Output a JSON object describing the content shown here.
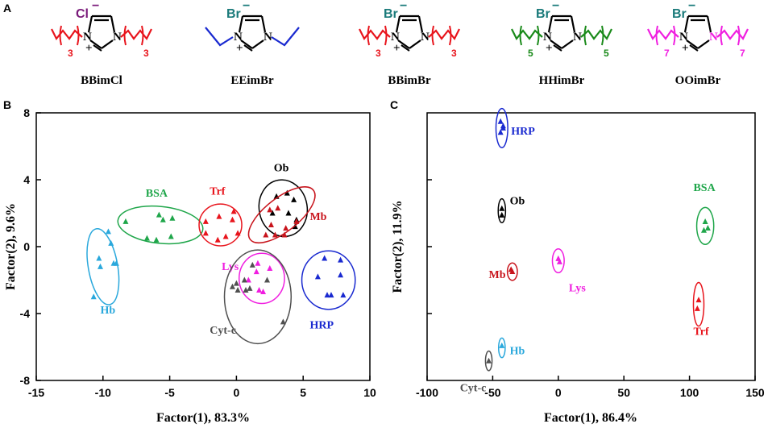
{
  "panel_labels": {
    "a": "A",
    "b": "B",
    "c": "C"
  },
  "molecules": [
    {
      "name": "BBimCl",
      "anion": "Cl",
      "charge": "−",
      "plus": "+",
      "atom_n": "N",
      "n": "3",
      "anion_color": "#7a1a7a",
      "chain_color": "#e8141c",
      "ring_n_color": "#000000"
    },
    {
      "name": "EEimBr",
      "anion": "Br",
      "charge": "−",
      "plus": "+",
      "atom_n": "N",
      "n": "",
      "anion_color": "#1a7a7a",
      "chain_color": "#1a2ad0",
      "ring_n_color": "#000000"
    },
    {
      "name": "BBimBr",
      "anion": "Br",
      "charge": "−",
      "plus": "+",
      "atom_n": "N",
      "n": "3",
      "anion_color": "#1a7a7a",
      "chain_color": "#e8141c",
      "ring_n_color": "#000000"
    },
    {
      "name": "HHimBr",
      "anion": "Br",
      "charge": "−",
      "plus": "+",
      "atom_n": "N",
      "n": "5",
      "anion_color": "#1a7a7a",
      "chain_color": "#1a8a1a",
      "ring_n_color": "#000000"
    },
    {
      "name": "OOimBr",
      "anion": "Br",
      "charge": "−",
      "plus": "+",
      "atom_n": "N",
      "n": "7",
      "anion_color": "#1a7a7a",
      "chain_color": "#f01ee0",
      "ring_n_color": "#f01ee0"
    }
  ],
  "chart_data": [
    {
      "type": "scatter",
      "panel": "B",
      "xlabel": "Factor(1), 83.3%",
      "ylabel": "Factor(2), 9.6%",
      "xlim": [
        -15,
        10
      ],
      "ylim": [
        -8,
        8
      ],
      "xticks": [
        -15,
        -10,
        -5,
        0,
        5,
        10
      ],
      "yticks": [
        -8,
        -4,
        0,
        4,
        8
      ],
      "xtick_labels": [
        "-15",
        "-10",
        "-5",
        "0",
        "5",
        "10"
      ],
      "ytick_labels": [
        "-8",
        "-4",
        "0",
        "4",
        "8"
      ],
      "marker": "triangle",
      "groups": [
        {
          "name": "Hb",
          "color": "#2aa8dc",
          "ellipse": {
            "cx": -10.0,
            "cy": -1.2,
            "rx": 1.1,
            "ry": 2.3,
            "angle": 10
          },
          "label_at": [
            -10.2,
            -4.0
          ],
          "points": [
            [
              -9.6,
              0.9
            ],
            [
              -9.4,
              0.2
            ],
            [
              -10.3,
              -0.7
            ],
            [
              -9.2,
              -1.0
            ],
            [
              -9.0,
              -1.0
            ],
            [
              -10.2,
              -1.2
            ],
            [
              -10.7,
              -3.0
            ]
          ]
        },
        {
          "name": "BSA",
          "color": "#1fa64a",
          "ellipse": {
            "cx": -5.7,
            "cy": 1.3,
            "rx": 3.2,
            "ry": 1.1,
            "angle": -6
          },
          "label_at": [
            -6.8,
            3.0
          ],
          "points": [
            [
              -5.8,
              1.9
            ],
            [
              -5.5,
              1.6
            ],
            [
              -4.8,
              1.7
            ],
            [
              -8.3,
              1.5
            ],
            [
              -4.9,
              0.6
            ],
            [
              -6.0,
              0.4
            ],
            [
              -6.7,
              0.5
            ]
          ]
        },
        {
          "name": "Trf",
          "color": "#e8141c",
          "ellipse": {
            "cx": -1.2,
            "cy": 1.3,
            "rx": 1.6,
            "ry": 1.25,
            "angle": 0
          },
          "label_at": [
            -2.0,
            3.1
          ],
          "points": [
            [
              -0.2,
              2.1
            ],
            [
              -1.3,
              1.8
            ],
            [
              -0.3,
              1.6
            ],
            [
              -2.3,
              1.5
            ],
            [
              -2.3,
              0.8
            ],
            [
              0.1,
              0.8
            ],
            [
              -0.8,
              0.6
            ],
            [
              -1.4,
              0.4
            ]
          ]
        },
        {
          "name": "Ob",
          "color": "#000000",
          "ellipse": {
            "cx": 3.5,
            "cy": 2.3,
            "rx": 1.8,
            "ry": 1.7,
            "angle": 10
          },
          "label_at": [
            2.8,
            4.5
          ],
          "points": [
            [
              3.8,
              3.2
            ],
            [
              3.0,
              3.0
            ],
            [
              4.3,
              2.8
            ],
            [
              2.7,
              2.0
            ],
            [
              3.9,
              2.0
            ],
            [
              4.5,
              1.6
            ],
            [
              4.4,
              1.2
            ]
          ]
        },
        {
          "name": "Mb",
          "color": "#c8141c",
          "ellipse": {
            "cx": 3.4,
            "cy": 1.9,
            "rx": 3.0,
            "ry": 1.0,
            "angle": 38
          },
          "label_at": [
            5.5,
            1.6
          ],
          "points": [
            [
              2.5,
              2.2
            ],
            [
              3.1,
              2.3
            ],
            [
              2.6,
              1.3
            ],
            [
              3.7,
              1.1
            ],
            [
              2.2,
              0.7
            ],
            [
              3.6,
              0.7
            ],
            [
              2.9,
              0.7
            ],
            [
              4.5,
              1.5
            ]
          ]
        },
        {
          "name": "Lys",
          "color": "#f01ee0",
          "ellipse": {
            "cx": 1.9,
            "cy": -1.9,
            "rx": 1.7,
            "ry": 1.5,
            "angle": 0
          },
          "label_at": [
            -1.1,
            -1.4
          ],
          "points": [
            [
              1.5,
              -1.5
            ],
            [
              2.5,
              -1.3
            ],
            [
              0.9,
              -2.0
            ],
            [
              1.7,
              -2.6
            ],
            [
              2.0,
              -2.7
            ],
            [
              1.6,
              -1.0
            ]
          ]
        },
        {
          "name": "Cyt-c",
          "color": "#505050",
          "ellipse": {
            "cx": 1.6,
            "cy": -3.0,
            "rx": 2.5,
            "ry": 2.8,
            "angle": 0
          },
          "label_at": [
            -2.0,
            -5.2
          ],
          "points": [
            [
              1.2,
              -1.1
            ],
            [
              0.6,
              -2.0
            ],
            [
              2.3,
              -2.0
            ],
            [
              -0.3,
              -2.4
            ],
            [
              0.1,
              -2.6
            ],
            [
              0.7,
              -2.6
            ],
            [
              1.0,
              -2.5
            ],
            [
              0.0,
              -2.2
            ],
            [
              3.5,
              -4.5
            ]
          ]
        },
        {
          "name": "HRP",
          "color": "#1a2ad0",
          "ellipse": {
            "cx": 6.9,
            "cy": -2.0,
            "rx": 2.0,
            "ry": 1.75,
            "angle": 0
          },
          "label_at": [
            5.5,
            -4.9
          ],
          "points": [
            [
              6.6,
              -0.7
            ],
            [
              7.8,
              -0.8
            ],
            [
              7.8,
              -1.7
            ],
            [
              6.1,
              -1.8
            ],
            [
              8.0,
              -2.9
            ],
            [
              6.8,
              -2.9
            ],
            [
              7.1,
              -2.9
            ]
          ]
        }
      ]
    },
    {
      "type": "scatter",
      "panel": "C",
      "xlabel": "Factor(1), 86.4%",
      "ylabel": "Factor(2), 11.9%",
      "xlim": [
        -100,
        150
      ],
      "ylim": [
        -5.5,
        6.8
      ],
      "xticks": [
        -100,
        -50,
        0,
        50,
        100,
        150
      ],
      "yticks": [],
      "xtick_labels": [
        "-100",
        "-50",
        "0",
        "50",
        "100",
        "150"
      ],
      "ytick_labels": [],
      "marker": "triangle",
      "groups": [
        {
          "name": "HRP",
          "color": "#1a2ad0",
          "ellipse": {
            "cx": -43,
            "cy": 6.1,
            "rx": 4.5,
            "ry": 0.9,
            "angle": 0
          },
          "label_at": [
            -36,
            5.8
          ],
          "points": [
            [
              -44,
              6.4
            ],
            [
              -42,
              6.1
            ],
            [
              -44,
              5.9
            ],
            [
              -42,
              6.2
            ]
          ]
        },
        {
          "name": "Ob",
          "color": "#000000",
          "ellipse": {
            "cx": -43,
            "cy": 2.3,
            "rx": 2.8,
            "ry": 0.55,
            "angle": 0
          },
          "label_at": [
            -37,
            2.6
          ],
          "points": [
            [
              -43,
              2.4
            ],
            [
              -43,
              2.1
            ]
          ]
        },
        {
          "name": "Mb",
          "color": "#c8141c",
          "ellipse": {
            "cx": -35,
            "cy": -0.5,
            "rx": 3.8,
            "ry": 0.4,
            "angle": 0
          },
          "label_at": [
            -53,
            -0.8
          ],
          "points": [
            [
              -35,
              -0.5
            ],
            [
              -36,
              -0.4
            ]
          ]
        },
        {
          "name": "Lys",
          "color": "#f01ee0",
          "ellipse": {
            "cx": 0,
            "cy": 0.0,
            "rx": 4.5,
            "ry": 0.55,
            "angle": 0
          },
          "label_at": [
            8,
            -1.4
          ],
          "points": [
            [
              0,
              0.1
            ],
            [
              1,
              -0.05
            ]
          ]
        },
        {
          "name": "Hb",
          "color": "#2aa8dc",
          "ellipse": {
            "cx": -43,
            "cy": -4.0,
            "rx": 2.5,
            "ry": 0.45,
            "angle": 0
          },
          "label_at": [
            -37,
            -4.3
          ],
          "points": [
            [
              -43,
              -3.9
            ]
          ]
        },
        {
          "name": "Cyt-c",
          "color": "#505050",
          "ellipse": {
            "cx": -53,
            "cy": -4.6,
            "rx": 2.5,
            "ry": 0.45,
            "angle": 0
          },
          "label_at": [
            -75,
            -6.0
          ],
          "points": [
            [
              -53,
              -4.6
            ]
          ]
        },
        {
          "name": "BSA",
          "color": "#1fa64a",
          "ellipse": {
            "cx": 112,
            "cy": 1.6,
            "rx": 6.5,
            "ry": 0.85,
            "angle": 0
          },
          "label_at": [
            103,
            3.2
          ],
          "points": [
            [
              112,
              1.8
            ],
            [
              111,
              1.4
            ],
            [
              114,
              1.5
            ]
          ]
        },
        {
          "name": "Trf",
          "color": "#e8141c",
          "ellipse": {
            "cx": 107,
            "cy": -2.0,
            "rx": 4.0,
            "ry": 1.0,
            "angle": 0
          },
          "label_at": [
            103,
            -3.4
          ],
          "points": [
            [
              107,
              -1.8
            ],
            [
              106,
              -2.2
            ]
          ]
        }
      ]
    }
  ]
}
